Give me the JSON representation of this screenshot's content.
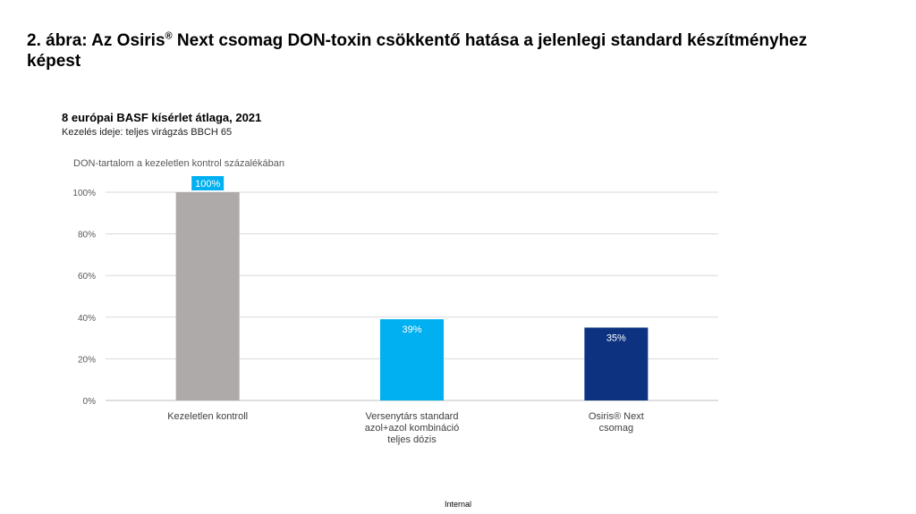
{
  "heading": {
    "part1": "2. ábra: Az Osiris",
    "sup": "®",
    "part2": " Next csomag DON-toxin csökkentő hatása a jelenlegi standard készítményhez képest"
  },
  "footer": "Internal",
  "chart_data": {
    "type": "bar",
    "title": "8 európai BASF kísérlet átlaga, 2021",
    "subtitle": "Kezelés ideje: teljes virágzás BBCH 65",
    "ylabel": "DON-tartalom a kezeletlen kontrol százalékában",
    "xlabel": "",
    "ylim": [
      0,
      100
    ],
    "yticks": [
      "0%",
      "20%",
      "40%",
      "60%",
      "80%",
      "100%"
    ],
    "ytick_values": [
      0,
      20,
      40,
      60,
      80,
      100
    ],
    "grid": true,
    "categories": [
      [
        "Kezeletlen kontroll"
      ],
      [
        "Versenytárs standard",
        "azol+azol kombináció",
        "teljes dózis"
      ],
      [
        "Osiris® Next",
        "csomag"
      ]
    ],
    "values": [
      100,
      39,
      35
    ],
    "data_labels": [
      "100%",
      "39%",
      "35%"
    ],
    "colors": [
      "#aeaaaa",
      "#00b0f0",
      "#0d3380"
    ],
    "label_bg_first": "#00b0f0"
  }
}
